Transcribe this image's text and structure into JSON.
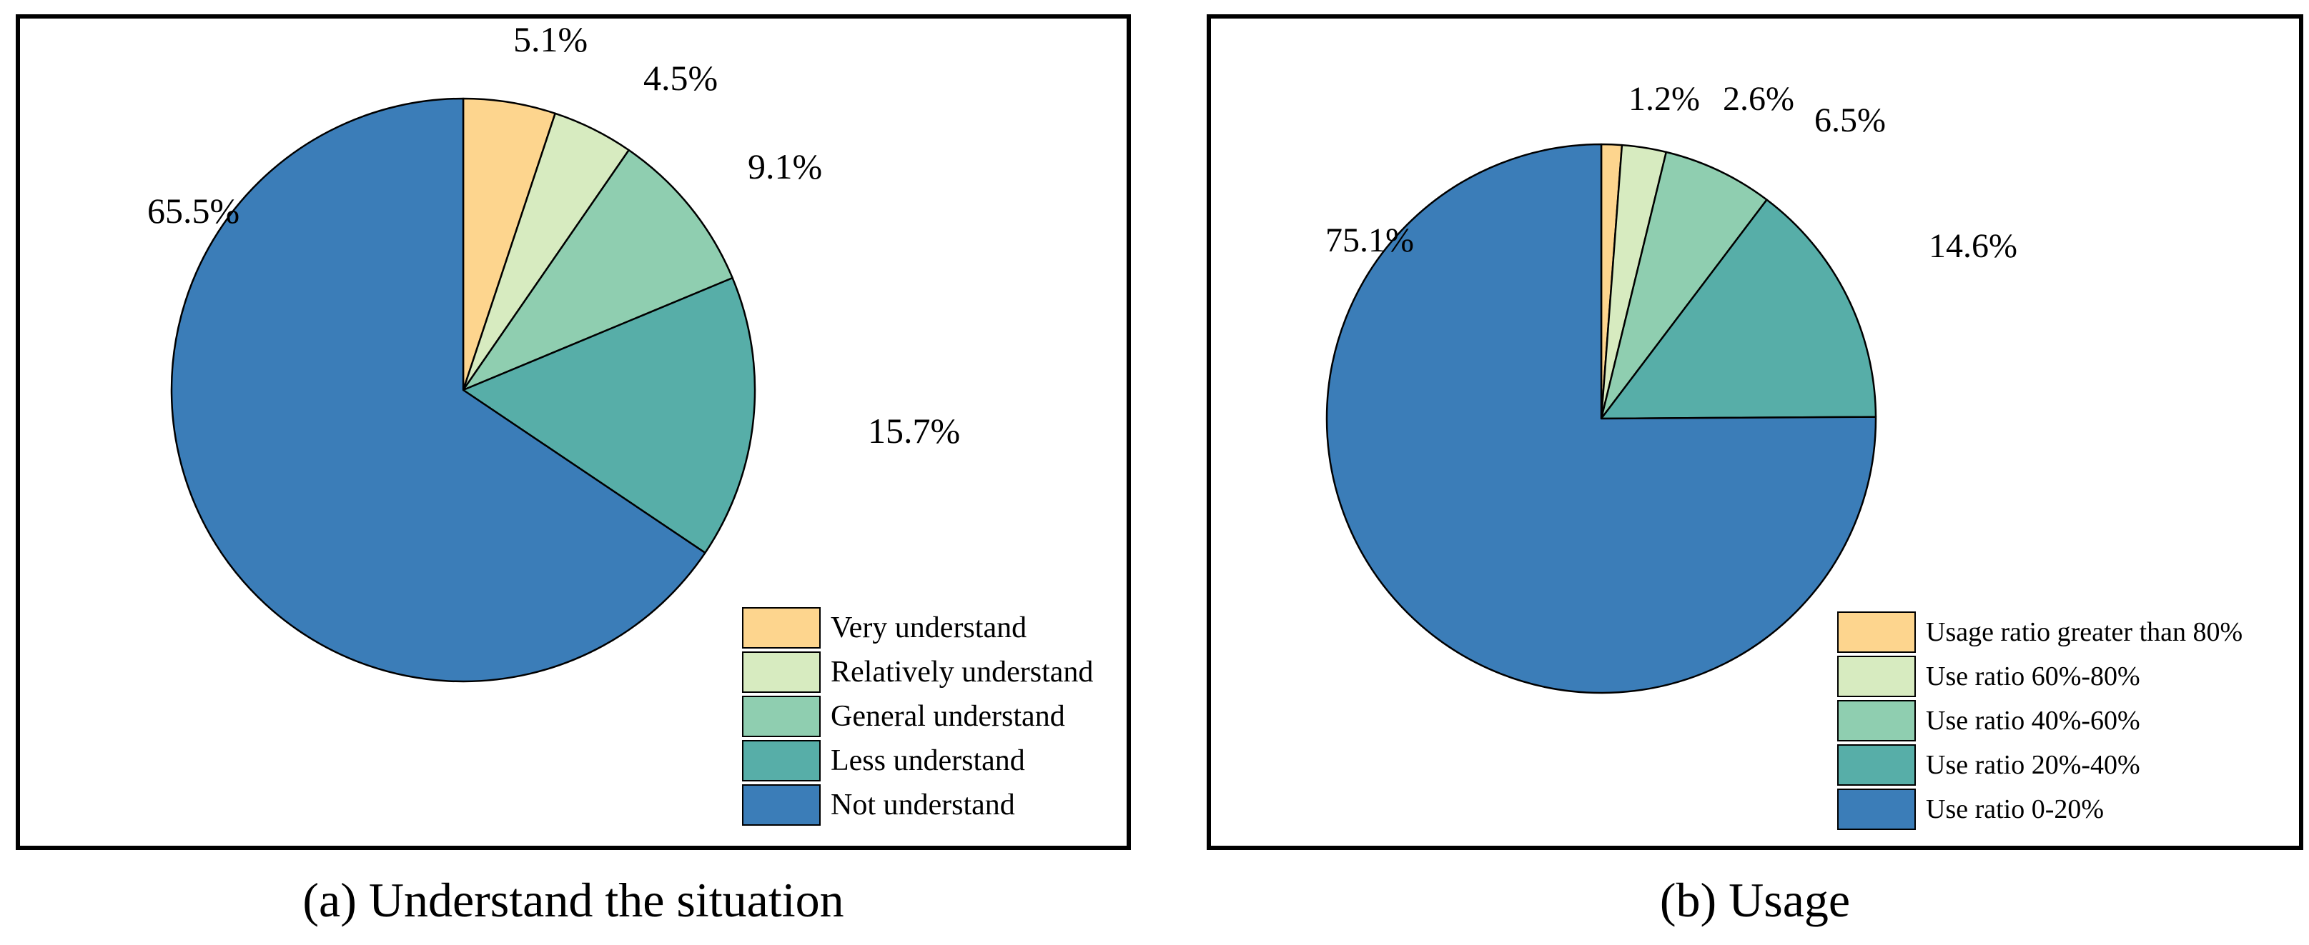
{
  "chart_data": [
    {
      "type": "pie",
      "caption": "(a) Understand the situation",
      "series": [
        {
          "label": "Very understand",
          "value": 5.1,
          "value_label": "5.1%",
          "color": "#FDD58E"
        },
        {
          "label": "Relatively understand",
          "value": 4.5,
          "value_label": "4.5%",
          "color": "#D7EBC0"
        },
        {
          "label": "General understand",
          "value": 9.1,
          "value_label": "9.1%",
          "color": "#8FCEB0"
        },
        {
          "label": "Less understand",
          "value": 15.7,
          "value_label": "15.7%",
          "color": "#57AEA8"
        },
        {
          "label": "Not understand",
          "value": 65.5,
          "value_label": "65.5%",
          "color": "#3B7DB8"
        }
      ],
      "start_angle": "12 o'clock",
      "direction": "clockwise",
      "legend_position": "bottom-right"
    },
    {
      "type": "pie",
      "caption": "(b) Usage",
      "series": [
        {
          "label": "Usage ratio greater than 80%",
          "value": 1.2,
          "value_label": "1.2%",
          "color": "#FDD58E"
        },
        {
          "label": "Use ratio 60%-80%",
          "value": 2.6,
          "value_label": "2.6%",
          "color": "#D7EBC0"
        },
        {
          "label": "Use ratio 40%-60%",
          "value": 6.5,
          "value_label": "6.5%",
          "color": "#8FCEB0"
        },
        {
          "label": "Use ratio 20%-40%",
          "value": 14.6,
          "value_label": "14.6%",
          "color": "#57AEA8"
        },
        {
          "label": "Use ratio 0-20%",
          "value": 75.1,
          "value_label": "75.1%",
          "color": "#3B7DB8"
        }
      ],
      "start_angle": "12 o'clock",
      "direction": "clockwise",
      "legend_position": "bottom-right"
    }
  ]
}
